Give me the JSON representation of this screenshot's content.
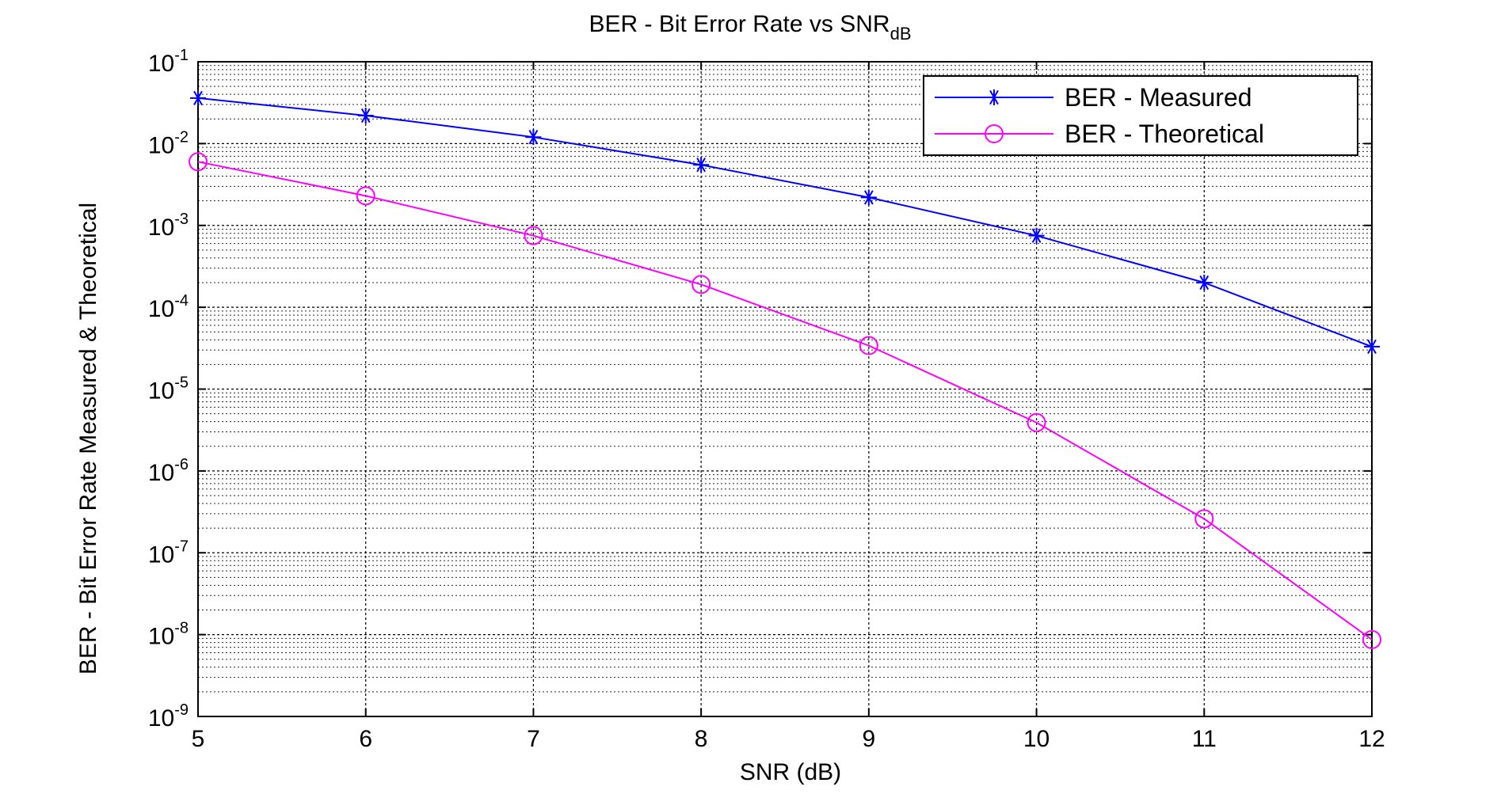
{
  "chart_data": {
    "type": "line",
    "title": "BER - Bit Error Rate vs SNR",
    "title_subscript": "dB",
    "xlabel": "SNR (dB)",
    "ylabel": "BER - Bit Error Rate Measured & Theoretical",
    "x": [
      5,
      6,
      7,
      8,
      9,
      10,
      11,
      12
    ],
    "xlim": [
      5,
      12
    ],
    "ylim": [
      1e-09,
      0.1
    ],
    "y_scale": "log",
    "x_ticks": [
      "5",
      "6",
      "7",
      "8",
      "9",
      "10",
      "11",
      "12"
    ],
    "y_ticks": [
      {
        "base": "10",
        "exp": "-1",
        "value": 0.1
      },
      {
        "base": "10",
        "exp": "-2",
        "value": 0.01
      },
      {
        "base": "10",
        "exp": "-3",
        "value": 0.001
      },
      {
        "base": "10",
        "exp": "-4",
        "value": 0.0001
      },
      {
        "base": "10",
        "exp": "-5",
        "value": 1e-05
      },
      {
        "base": "10",
        "exp": "-6",
        "value": 1e-06
      },
      {
        "base": "10",
        "exp": "-7",
        "value": 1e-07
      },
      {
        "base": "10",
        "exp": "-8",
        "value": 1e-08
      },
      {
        "base": "10",
        "exp": "-9",
        "value": 1e-09
      }
    ],
    "grid": true,
    "minor_grid": true,
    "legend_position": "top-right",
    "series": [
      {
        "name": "BER - Measured",
        "color": "#0000ff",
        "marker": "asterisk",
        "values": [
          0.036,
          0.022,
          0.012,
          0.0055,
          0.0022,
          0.00075,
          0.0002,
          3.3e-05
        ]
      },
      {
        "name": "BER - Theoretical",
        "color": "#ff00ff",
        "marker": "circle",
        "values": [
          0.006,
          0.0023,
          0.00075,
          0.00019,
          3.4e-05,
          3.9e-06,
          2.6e-07,
          8.7e-09
        ]
      }
    ]
  }
}
